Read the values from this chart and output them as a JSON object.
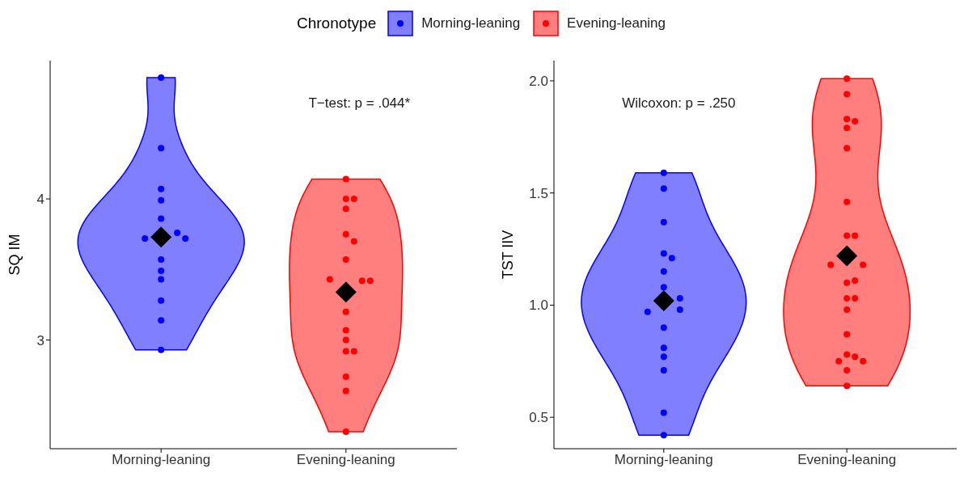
{
  "chart_data": [
    {
      "type": "scatter",
      "ylabel": "SQ IM",
      "legend_title": "Chronotype",
      "legend": "top",
      "marker": "circle",
      "categories": [
        "Morning-leaning",
        "Evening-leaning"
      ],
      "ylim": [
        2.23,
        4.98
      ],
      "yticks": [
        3,
        4
      ],
      "annotations": [
        "T−test: p = .044*"
      ],
      "series": [
        {
          "name": "Morning-leaning",
          "color": "#0000ff",
          "x": [
            "Morning-leaning",
            "Morning-leaning",
            "Morning-leaning",
            "Morning-leaning",
            "Morning-leaning",
            "Morning-leaning",
            "Morning-leaning",
            "Morning-leaning",
            "Morning-leaning",
            "Morning-leaning",
            "Morning-leaning",
            "Morning-leaning",
            "Morning-leaning",
            "Morning-leaning"
          ],
          "values": [
            4.86,
            4.36,
            4.07,
            3.99,
            3.86,
            3.76,
            3.72,
            3.72,
            3.57,
            3.49,
            3.43,
            3.28,
            3.14,
            2.93
          ]
        },
        {
          "name": "Evening-leaning",
          "color": "#ff0000",
          "x": [
            "Evening-leaning",
            "Evening-leaning",
            "Evening-leaning",
            "Evening-leaning",
            "Evening-leaning",
            "Evening-leaning",
            "Evening-leaning",
            "Evening-leaning",
            "Evening-leaning",
            "Evening-leaning",
            "Evening-leaning",
            "Evening-leaning",
            "Evening-leaning",
            "Evening-leaning",
            "Evening-leaning",
            "Evening-leaning",
            "Evening-leaning",
            "Evening-leaning"
          ],
          "values": [
            4.14,
            4.0,
            4.0,
            3.93,
            3.75,
            3.7,
            3.57,
            3.42,
            3.43,
            3.42,
            3.2,
            3.07,
            3.0,
            2.92,
            2.92,
            2.74,
            2.64,
            2.35
          ]
        },
        {
          "color": "#000000",
          "marker": "diamond",
          "x": [
            "Morning-leaning",
            "Evening-leaning"
          ],
          "values": [
            3.73,
            3.34
          ]
        }
      ]
    },
    {
      "type": "scatter",
      "ylabel": "TST IIV",
      "legend": "top",
      "marker": "circle",
      "categories": [
        "Morning-leaning",
        "Evening-leaning"
      ],
      "ylim": [
        0.36,
        2.09
      ],
      "yticks": [
        {
          "value": 0.5,
          "label": "0.5"
        },
        {
          "value": 1,
          "label": "1.0"
        },
        {
          "value": 1.5,
          "label": "1.5"
        },
        {
          "value": 2,
          "label": "2.0"
        }
      ],
      "annotations": [
        "Wilcoxon: p = .250"
      ],
      "series": [
        {
          "name": "Morning-leaning",
          "color": "#0000ff",
          "x": [
            "Morning-leaning",
            "Morning-leaning",
            "Morning-leaning",
            "Morning-leaning",
            "Morning-leaning",
            "Morning-leaning",
            "Morning-leaning",
            "Morning-leaning",
            "Morning-leaning",
            "Morning-leaning",
            "Morning-leaning",
            "Morning-leaning",
            "Morning-leaning",
            "Morning-leaning",
            "Morning-leaning",
            "Morning-leaning"
          ],
          "values": [
            1.59,
            1.52,
            1.37,
            1.23,
            1.21,
            1.15,
            1.08,
            1.03,
            0.98,
            0.97,
            0.9,
            0.81,
            0.77,
            0.71,
            0.52,
            0.42
          ]
        },
        {
          "name": "Evening-leaning",
          "color": "#ff0000",
          "x": [
            "Evening-leaning",
            "Evening-leaning",
            "Evening-leaning",
            "Evening-leaning",
            "Evening-leaning",
            "Evening-leaning",
            "Evening-leaning",
            "Evening-leaning",
            "Evening-leaning",
            "Evening-leaning",
            "Evening-leaning",
            "Evening-leaning",
            "Evening-leaning",
            "Evening-leaning",
            "Evening-leaning",
            "Evening-leaning",
            "Evening-leaning",
            "Evening-leaning",
            "Evening-leaning",
            "Evening-leaning",
            "Evening-leaning",
            "Evening-leaning",
            "Evening-leaning"
          ],
          "values": [
            2.01,
            1.94,
            1.83,
            1.82,
            1.79,
            1.7,
            1.46,
            1.31,
            1.31,
            1.18,
            1.18,
            1.1,
            1.11,
            1.03,
            1.03,
            0.98,
            0.87,
            0.78,
            0.77,
            0.75,
            0.75,
            0.71,
            0.64
          ]
        },
        {
          "color": "#000000",
          "marker": "diamond",
          "x": [
            "Morning-leaning",
            "Evening-leaning"
          ],
          "values": [
            1.02,
            1.22
          ]
        }
      ]
    }
  ]
}
